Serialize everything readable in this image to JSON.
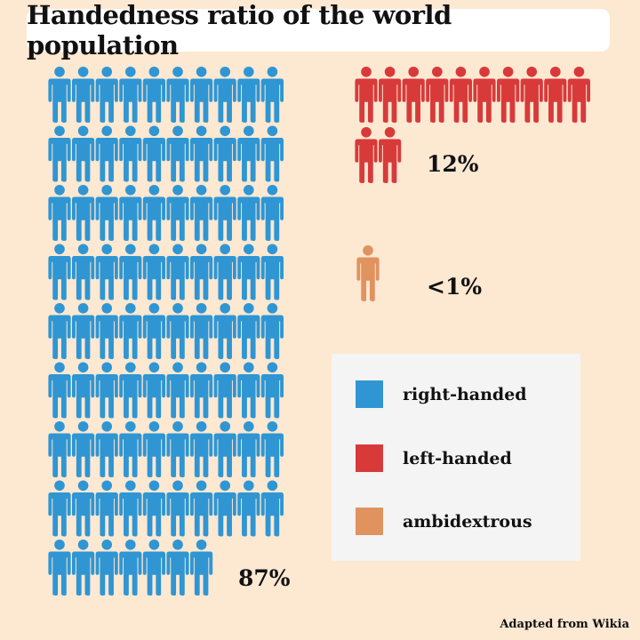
{
  "title": "Handedness ratio of the world population",
  "chart_data": {
    "type": "pictogram",
    "title": "Handedness ratio of the world population",
    "unit": "person icon = 1%",
    "series": [
      {
        "name": "right-handed",
        "value": 87,
        "label": "87%",
        "color": "#2f96d3"
      },
      {
        "name": "left-handed",
        "value": 12,
        "label": "12%",
        "color": "#d83a3a"
      },
      {
        "name": "ambidextrous",
        "value": 1,
        "label": "<1%",
        "color": "#e0935e"
      }
    ],
    "legend": {
      "placement": "right",
      "items": [
        "right-handed",
        "left-handed",
        "ambidextrous"
      ]
    }
  },
  "credit": "Adapted from Wikia"
}
